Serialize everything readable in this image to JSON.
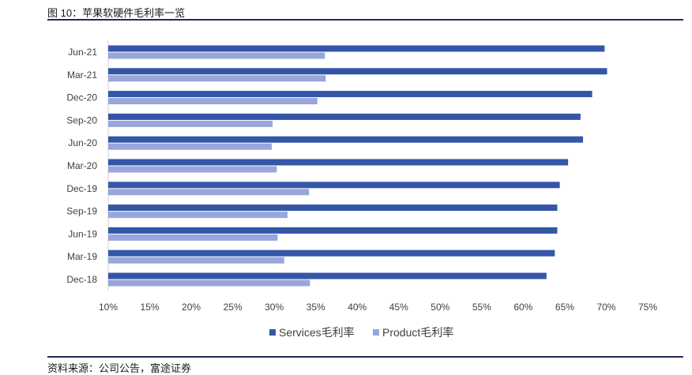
{
  "header": {
    "title": "图 10：苹果软硬件毛利率一览"
  },
  "footer": {
    "source": "资料来源：公司公告，富途证券"
  },
  "colors": {
    "services": "#3356a8",
    "product": "#98a6dc",
    "rule": "#1f2d5a"
  },
  "chart_data": {
    "type": "bar",
    "orientation": "horizontal",
    "title": "",
    "xlabel": "",
    "ylabel": "",
    "categories": [
      "Jun-21",
      "Mar-21",
      "Dec-20",
      "Sep-20",
      "Jun-20",
      "Mar-20",
      "Dec-19",
      "Sep-19",
      "Jun-19",
      "Mar-19",
      "Dec-18"
    ],
    "series": [
      {
        "name": "Services毛利率",
        "values": [
          0.698,
          0.701,
          0.683,
          0.669,
          0.672,
          0.654,
          0.644,
          0.641,
          0.641,
          0.638,
          0.628
        ]
      },
      {
        "name": "Product毛利率",
        "values": [
          0.361,
          0.362,
          0.352,
          0.298,
          0.297,
          0.303,
          0.342,
          0.316,
          0.304,
          0.312,
          0.343
        ]
      }
    ],
    "xlim": [
      0.1,
      0.75
    ],
    "xticks": [
      0.1,
      0.15,
      0.2,
      0.25,
      0.3,
      0.35,
      0.4,
      0.45,
      0.5,
      0.55,
      0.6,
      0.65,
      0.7,
      0.75
    ],
    "xtick_labels": [
      "10%",
      "15%",
      "20%",
      "25%",
      "30%",
      "35%",
      "40%",
      "45%",
      "50%",
      "55%",
      "60%",
      "65%",
      "70%",
      "75%"
    ],
    "grid": false,
    "legend_position": "bottom"
  }
}
